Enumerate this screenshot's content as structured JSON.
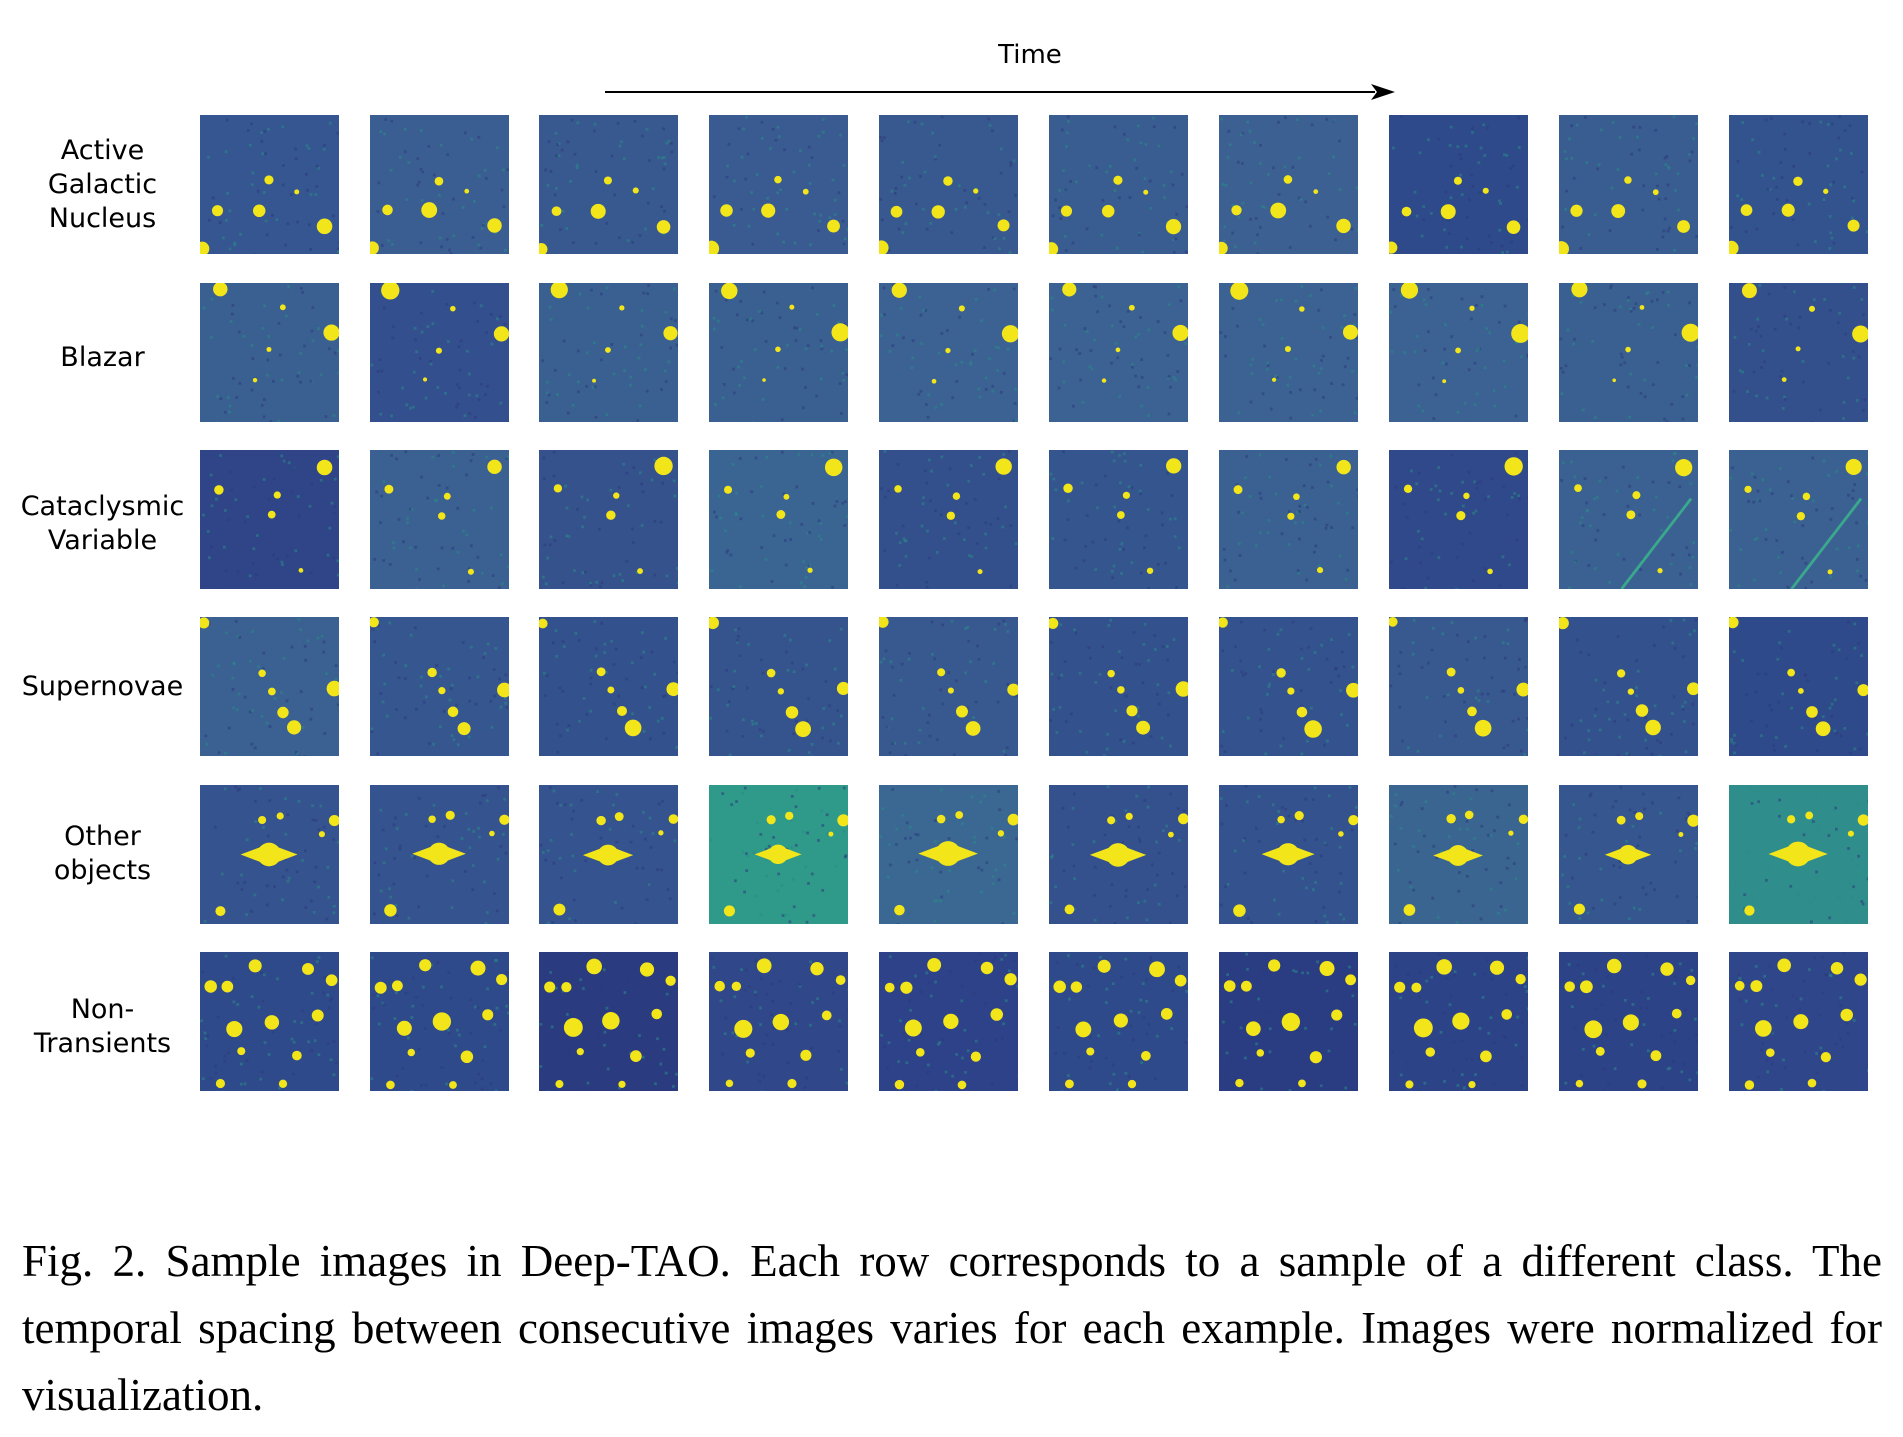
{
  "figure": {
    "time_label": "Time",
    "rows": [
      {
        "label": "Active\nGalactic\nNucleus",
        "bg": [
          "#355690",
          "#3b5e92",
          "#38598f",
          "#3a5b91",
          "#38598f",
          "#395c91",
          "#3c6092",
          "#2e4a8a",
          "#395c91",
          "#33538e"
        ]
      },
      {
        "label": "Blazar",
        "bg": [
          "#3a6091",
          "#344f8e",
          "#3a6091",
          "#3a6091",
          "#3b6292",
          "#3b6292",
          "#3b6292",
          "#3b6292",
          "#3a6091",
          "#33508d"
        ]
      },
      {
        "label": "Cataclysmic\nVariable",
        "bg": [
          "#2f4587",
          "#3a6191",
          "#35528d",
          "#3a6492",
          "#33508d",
          "#35558e",
          "#3a6191",
          "#30498a",
          "#3a6191",
          "#3a6191"
        ]
      },
      {
        "label": "Supernovae",
        "bg": [
          "#3a6191",
          "#36568f",
          "#33518d",
          "#35548e",
          "#38598f",
          "#33518d",
          "#34538e",
          "#38598f",
          "#33518d",
          "#2e4a8a"
        ]
      },
      {
        "label": "Other\nobjects",
        "bg": [
          "#35538e",
          "#35538e",
          "#35538e",
          "#2f9a8a",
          "#3a6892",
          "#34518e",
          "#34528e",
          "#3a6591",
          "#35568e",
          "#2f8e8b"
        ]
      },
      {
        "label": "Non-\nTransients",
        "bg": [
          "#2f4a8a",
          "#2f4a8a",
          "#2a3b80",
          "#30478a",
          "#2d4288",
          "#2f4a8a",
          "#2a3c82",
          "#2d4388",
          "#2d4388",
          "#2f478a"
        ]
      }
    ],
    "star_color": "#f2e51a",
    "arrow_color": "#000000"
  },
  "caption": "Fig. 2. Sample images in Deep-TAO. Each row corresponds to a sample of a different class. The temporal spacing between consecutive images varies for each example. Images were normalized for visualization."
}
